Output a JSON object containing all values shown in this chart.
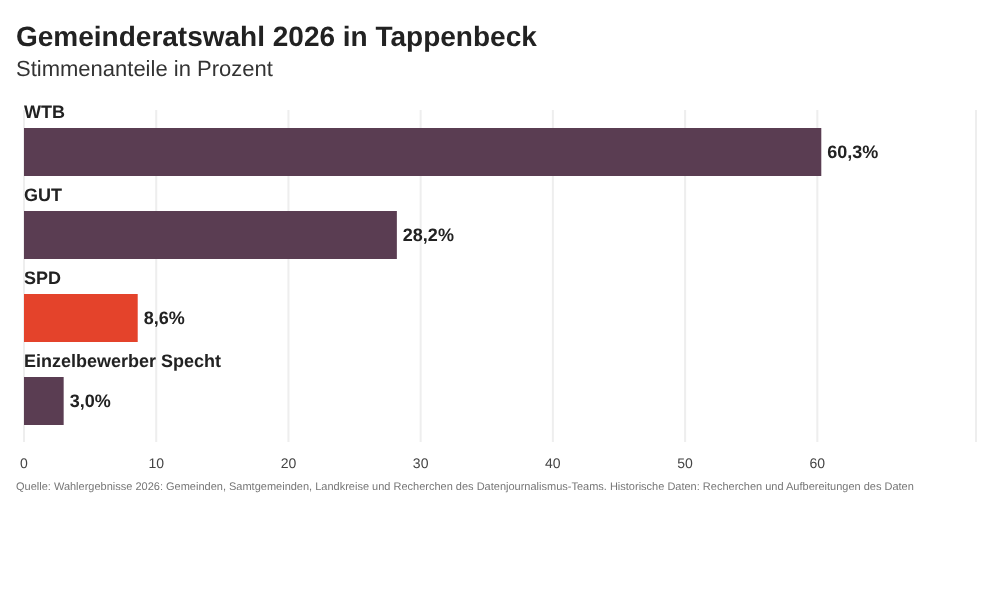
{
  "chart_data": {
    "type": "bar",
    "orientation": "horizontal",
    "title": "Gemeinderatswahl 2026 in Tappenbeck",
    "subtitle": "Stimmenanteile in Prozent",
    "categories": [
      "WTB",
      "GUT",
      "SPD",
      "Einzelbewerber Specht"
    ],
    "values": [
      60.3,
      28.2,
      8.6,
      3.0
    ],
    "colors": [
      "#5a3d52",
      "#5a3d52",
      "#e4432b",
      "#5a3d52"
    ],
    "value_labels": [
      "60,3%",
      "28,2%",
      "8,6%",
      "3,0%"
    ],
    "xlim": [
      0,
      72
    ],
    "xticks": [
      0,
      10,
      20,
      30,
      40,
      50,
      60
    ],
    "grid": "x",
    "legend": false,
    "annotations": [
      "Quelle: Wahlergebnisse 2026: Gemeinden, Samtgemeinden, Landkreise und Recherchen des Datenjournalismus-Teams. Historische Daten: Recherchen und Aufbereitungen des Daten"
    ]
  }
}
